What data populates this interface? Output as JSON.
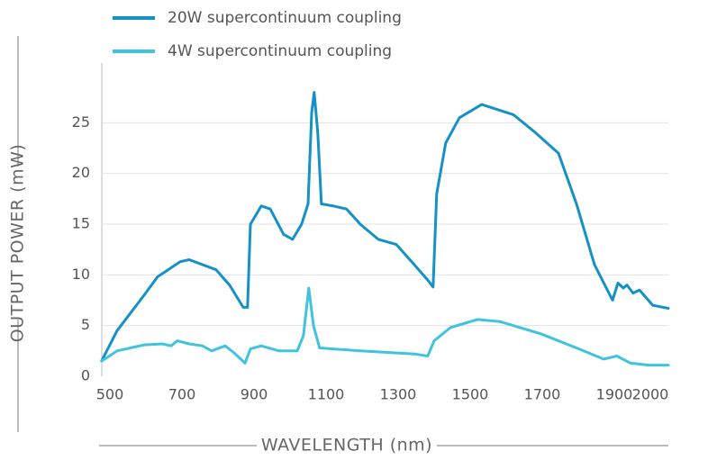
{
  "chart_data": {
    "type": "line",
    "xlabel": "WAVELENGTH (nm)",
    "ylabel": "OUTPUT POWER (mW)",
    "xlim": [
      470,
      2050
    ],
    "ylim": [
      0,
      28.5
    ],
    "xticks": [
      500,
      700,
      900,
      1100,
      1300,
      1500,
      1700,
      1900,
      2000
    ],
    "yticks": [
      0,
      5,
      10,
      15,
      20,
      25
    ],
    "grid": true,
    "legend": "top-left",
    "series": [
      {
        "name": "20W supercontinuum coupling",
        "color": "#1591c5",
        "x": [
          477,
          520,
          595,
          632,
          695,
          720,
          795,
          832,
          870,
          882,
          890,
          920,
          945,
          982,
          1007,
          1032,
          1050,
          1060,
          1067,
          1077,
          1087,
          1120,
          1157,
          1195,
          1245,
          1295,
          1345,
          1382,
          1397,
          1407,
          1432,
          1470,
          1532,
          1620,
          1682,
          1745,
          1795,
          1845,
          1895,
          1910,
          1925,
          1935,
          1952,
          1970,
          2007,
          2050
        ],
        "values": [
          1.5,
          4.5,
          8,
          9.8,
          11.3,
          11.5,
          10.5,
          9,
          6.8,
          6.8,
          15,
          16.8,
          16.5,
          14,
          13.5,
          15,
          17,
          26,
          28,
          24,
          17,
          16.8,
          16.5,
          15,
          13.5,
          13,
          11,
          9.5,
          8.8,
          18,
          23,
          25.5,
          26.8,
          25.8,
          24,
          22,
          17,
          11,
          7.5,
          9.2,
          8.7,
          9,
          8.2,
          8.5,
          7,
          6.7
        ]
      },
      {
        "name": "4W supercontinuum coupling",
        "color": "#40c3dc",
        "x": [
          477,
          520,
          595,
          645,
          670,
          687,
          720,
          757,
          782,
          820,
          845,
          875,
          890,
          920,
          970,
          1020,
          1037,
          1052,
          1065,
          1082,
          1195,
          1345,
          1382,
          1400,
          1445,
          1520,
          1582,
          1695,
          1795,
          1870,
          1907,
          1945,
          1995,
          2050
        ],
        "values": [
          1.5,
          2.5,
          3.1,
          3.2,
          3,
          3.5,
          3.2,
          3,
          2.5,
          3,
          2.3,
          1.3,
          2.7,
          3,
          2.5,
          2.5,
          4,
          8.7,
          5,
          2.8,
          2.5,
          2.2,
          2,
          3.5,
          4.8,
          5.6,
          5.4,
          4.2,
          2.8,
          1.7,
          2,
          1.3,
          1.1,
          1.1
        ]
      }
    ]
  }
}
